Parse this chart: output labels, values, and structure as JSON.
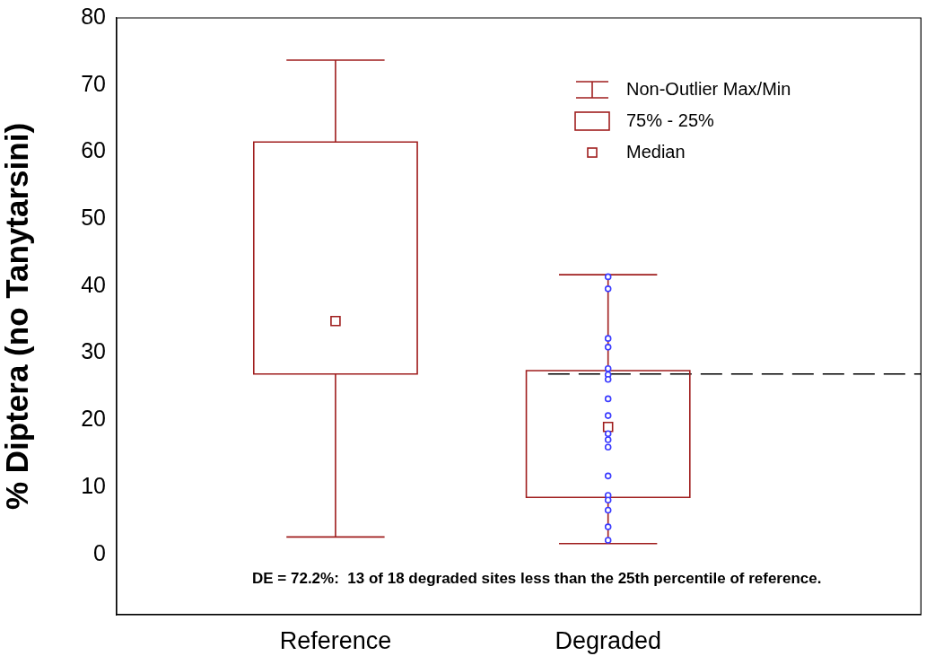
{
  "chart_data": {
    "type": "box",
    "ylabel": "% Diptera (no Tanytarsini)",
    "categories": [
      "Reference",
      "Degraded"
    ],
    "ylim": [
      -9,
      80
    ],
    "yticks": [
      0,
      10,
      20,
      30,
      40,
      50,
      60,
      70,
      80
    ],
    "grid": false,
    "marker": "square",
    "series": [
      {
        "color": "#a01e1e",
        "boxes": [
          {
            "low": 2.6,
            "q1": 26.9,
            "median": 34.8,
            "q3": 61.5,
            "high": 73.7
          },
          {
            "low": 1.6,
            "q1": 8.5,
            "median": 19.0,
            "q3": 27.4,
            "high": 41.7
          }
        ]
      },
      {
        "type": "scatter",
        "color": "#3a3aff",
        "marker": "circle",
        "x": [
          "Degraded",
          "Degraded",
          "Degraded",
          "Degraded",
          "Degraded",
          "Degraded",
          "Degraded",
          "Degraded",
          "Degraded",
          "Degraded",
          "Degraded",
          "Degraded",
          "Degraded",
          "Degraded",
          "Degraded",
          "Degraded",
          "Degraded",
          "Degraded"
        ],
        "values": [
          41.4,
          39.6,
          32.2,
          30.9,
          27.7,
          26.8,
          26.1,
          23.2,
          20.7,
          18.0,
          17.1,
          16.0,
          11.7,
          8.8,
          8.1,
          6.6,
          4.1,
          2.1
        ]
      }
    ],
    "ref_lines": [
      {
        "axis": "y",
        "value": 26.9,
        "color": "#000000",
        "line_style": "dashed"
      }
    ],
    "annotations": [
      "Non-Outlier Max/Min",
      "75% - 25%",
      "Median",
      "DE = 72.2%:  13 of 18 degraded sites less than the 25th percentile of reference."
    ]
  }
}
